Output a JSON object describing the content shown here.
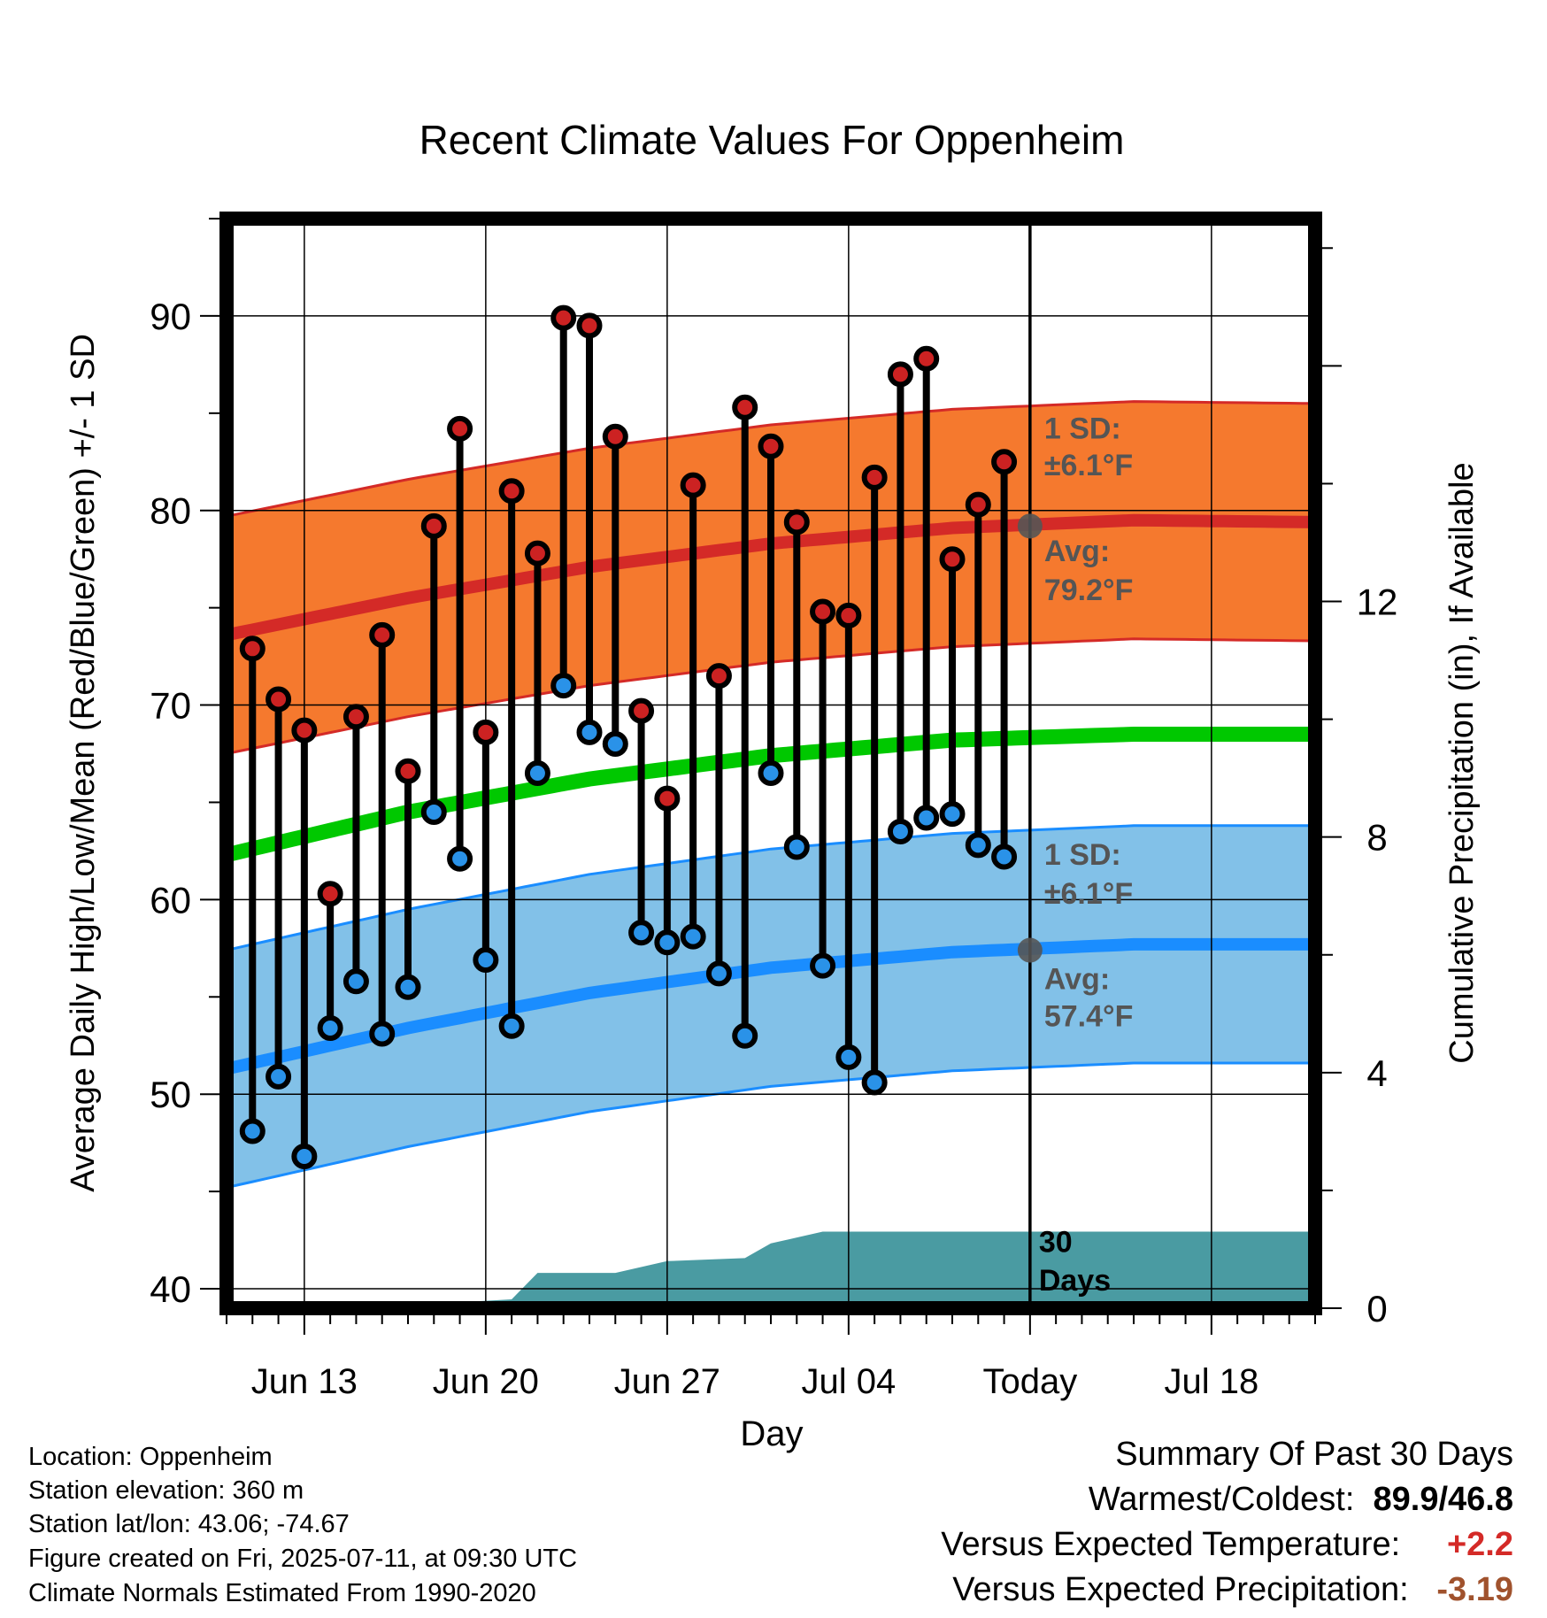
{
  "chart_data": {
    "type": "line",
    "title": "Recent Climate Values For Oppenheim",
    "xlabel": "Day",
    "ylabel": "Average Daily High/Low/Mean (Red/Blue/Green) +/- 1 SD",
    "ylabel_right": "Cumulative Precipitation (in), If Available",
    "ylim": [
      39,
      95
    ],
    "y2lim": [
      0,
      18.5
    ],
    "yticks": [
      40,
      50,
      60,
      70,
      80,
      90
    ],
    "y2ticks": [
      0,
      4,
      8,
      12
    ],
    "xlim": [
      "Jun 10",
      "Jul 22"
    ],
    "xtick_dates": [
      "Jun 13",
      "Jun 20",
      "Jun 27",
      "Jul 04",
      "Jul 11",
      "Jul 18"
    ],
    "xtick_labels": [
      "Jun 13",
      "Jun 20",
      "Jun 27",
      "Jul 04",
      "Today",
      "Jul 18"
    ],
    "grid": true,
    "today": "Jul 11",
    "daily": {
      "dates": [
        "Jun 11",
        "Jun 12",
        "Jun 13",
        "Jun 14",
        "Jun 15",
        "Jun 16",
        "Jun 17",
        "Jun 18",
        "Jun 19",
        "Jun 20",
        "Jun 21",
        "Jun 22",
        "Jun 23",
        "Jun 24",
        "Jun 25",
        "Jun 26",
        "Jun 27",
        "Jun 28",
        "Jun 29",
        "Jun 30",
        "Jul 01",
        "Jul 02",
        "Jul 03",
        "Jul 04",
        "Jul 05",
        "Jul 06",
        "Jul 07",
        "Jul 08",
        "Jul 09",
        "Jul 10"
      ],
      "high": [
        72.9,
        70.3,
        68.7,
        60.3,
        69.4,
        73.6,
        66.6,
        79.2,
        84.2,
        68.6,
        81.0,
        77.8,
        89.9,
        89.5,
        83.8,
        69.7,
        65.2,
        81.3,
        71.5,
        85.3,
        83.3,
        79.4,
        74.8,
        74.6,
        81.7,
        87.0,
        87.8,
        77.5,
        80.3,
        82.5
      ],
      "low": [
        48.1,
        50.9,
        46.8,
        53.4,
        55.8,
        53.1,
        55.5,
        64.5,
        62.1,
        56.9,
        53.5,
        66.5,
        71.0,
        68.6,
        68.0,
        58.3,
        57.8,
        58.1,
        56.2,
        53.0,
        66.5,
        62.7,
        56.6,
        51.9,
        50.6,
        63.5,
        64.2,
        64.4,
        62.8,
        62.2
      ]
    },
    "normals": {
      "dates": [
        "Jun 10",
        "Jun 17",
        "Jun 24",
        "Jul 01",
        "Jul 08",
        "Jul 15",
        "Jul 22"
      ],
      "avg_high": [
        73.6,
        75.5,
        77.1,
        78.3,
        79.1,
        79.5,
        79.4
      ],
      "avg_low": [
        51.3,
        53.4,
        55.2,
        56.5,
        57.3,
        57.7,
        57.7
      ],
      "avg_mean": [
        62.3,
        64.5,
        66.2,
        67.4,
        68.2,
        68.5,
        68.5
      ],
      "high_sd": 6.1,
      "low_sd": 6.1
    },
    "precip": {
      "dates": [
        "Jun 10",
        "Jun 16",
        "Jun 19",
        "Jun 21",
        "Jun 22",
        "Jun 25",
        "Jun 27",
        "Jun 30",
        "Jul 01",
        "Jul 03",
        "Jul 22"
      ],
      "cumulative": [
        0.0,
        0.0,
        0.1,
        0.15,
        0.6,
        0.6,
        0.8,
        0.85,
        1.1,
        1.3,
        1.3
      ]
    },
    "annotations": {
      "high_sd_label": "1 SD:",
      "high_sd_value": "±6.1°F",
      "high_avg_label": "Avg:",
      "high_avg_value": "79.2°F",
      "low_sd_label": "1 SD:",
      "low_sd_value": "±6.1°F",
      "low_avg_label": "Avg:",
      "low_avg_value": "57.4°F",
      "today_high_avg": 79.2,
      "today_low_avg": 57.4,
      "window_count": "30",
      "window_unit": "Days"
    },
    "colors": {
      "high_band": "#f5792e",
      "high_line": "#d42a27",
      "low_band": "#82c1e8",
      "low_line": "#1a8dff",
      "mean_line": "#00c800",
      "precip": "#4a9ba2",
      "high_dot": "#cc2222",
      "low_dot": "#2a92e8",
      "annot": "#555555"
    }
  },
  "info": {
    "location": "Location: Oppenheim",
    "elevation": "Station elevation: 360 m",
    "latlon": "Station lat/lon: 43.06; -74.67",
    "created": "Figure created on Fri, 2025-07-11, at 09:30 UTC",
    "normals": "Climate Normals Estimated From 1990-2020"
  },
  "summary": {
    "heading": "Summary Of Past 30 Days",
    "warm_cold_label": "Warmest/Coldest:",
    "warm_cold_value": "89.9/46.8",
    "temp_label": "Versus Expected Temperature:",
    "temp_value": "+2.2",
    "temp_color": "#d42a27",
    "precip_label": "Versus Expected Precipitation:",
    "precip_value": "-3.19",
    "precip_color": "#a0522d"
  }
}
